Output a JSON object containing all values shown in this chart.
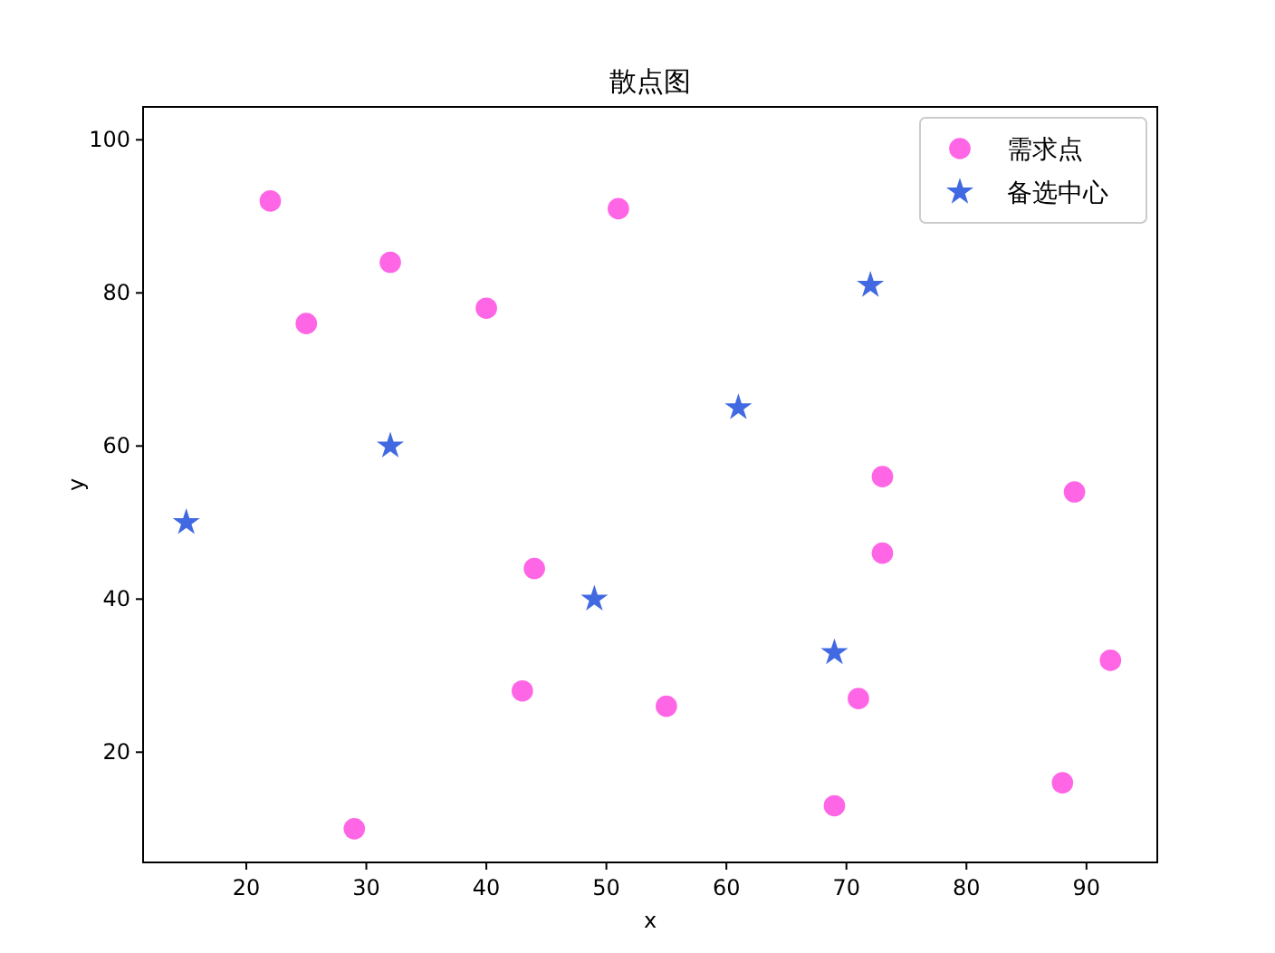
{
  "chart_data": {
    "type": "scatter",
    "title": "散点图",
    "xlabel": "x",
    "ylabel": "y",
    "xlim": [
      11.4,
      95.9
    ],
    "ylim": [
      5.6,
      104.3
    ],
    "xticks": [
      20,
      30,
      40,
      50,
      60,
      70,
      80,
      90
    ],
    "yticks": [
      20,
      40,
      60,
      80,
      100
    ],
    "grid": false,
    "legend": "top right",
    "series": [
      {
        "name": "需求点",
        "color": "#ff66e6",
        "marker": "circle",
        "x": [
          22,
          51,
          32,
          25,
          40,
          73,
          89,
          73,
          44,
          92,
          43,
          55,
          71,
          88,
          69,
          29
        ],
        "values": [
          92,
          91,
          84,
          76,
          78,
          56,
          54,
          46,
          44,
          32,
          28,
          26,
          27,
          16,
          13,
          10
        ]
      },
      {
        "name": "备选中心",
        "color": "#4169e1",
        "marker": "star",
        "x": [
          15,
          32,
          61,
          72,
          49,
          69
        ],
        "values": [
          50,
          60,
          65,
          81,
          40,
          33
        ]
      }
    ]
  }
}
